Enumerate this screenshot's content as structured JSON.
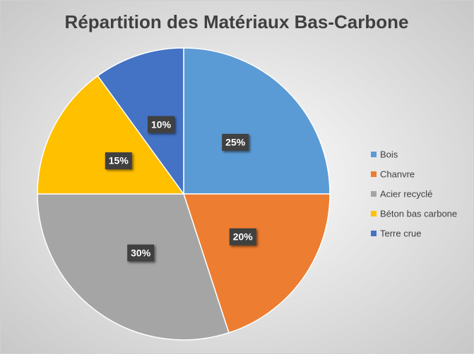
{
  "chart_data": {
    "type": "pie",
    "title": "Répartition des Matériaux Bas-Carbone",
    "categories": [
      "Bois",
      "Chanvre",
      "Acier recyclé",
      "Béton bas carbone",
      "Terre crue"
    ],
    "values": [
      25,
      20,
      30,
      15,
      10
    ],
    "value_labels": [
      "25%",
      "20%",
      "30%",
      "15%",
      "10%"
    ],
    "colors": [
      "#5b9bd5",
      "#ed7d31",
      "#a5a5a5",
      "#ffc000",
      "#4472c4"
    ],
    "legend": "right"
  }
}
